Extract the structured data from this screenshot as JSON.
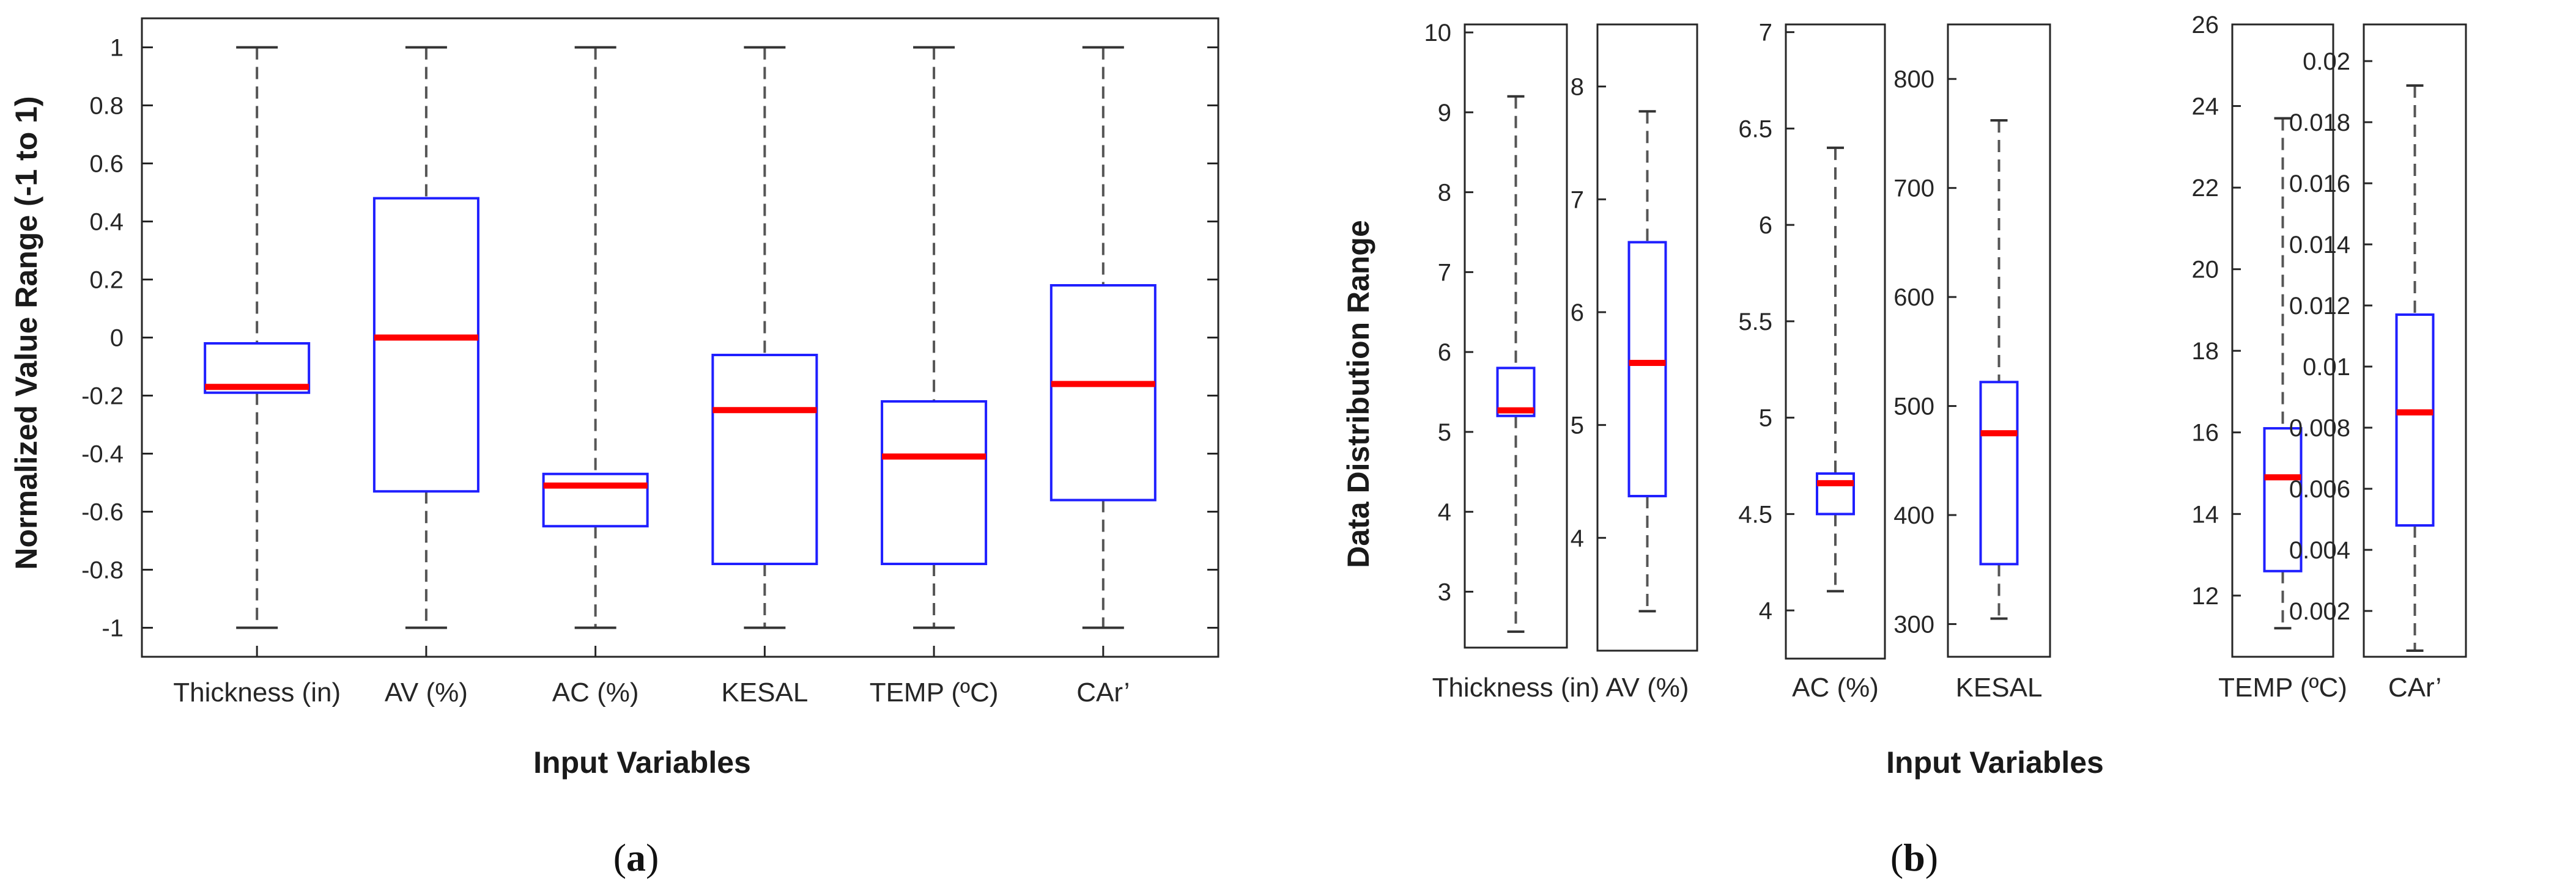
{
  "colors": {
    "box": "#1f1fff",
    "median": "#ff0000",
    "whisker": "#555555",
    "axis": "#262626"
  },
  "chart_data": [
    {
      "type": "box",
      "panel": "(a)",
      "panel_letter": "a",
      "xlabel": "Input Variables",
      "ylabel": "Normalized Value Range (-1 to 1)",
      "ylim": [
        -1.1,
        1.1
      ],
      "yticks": [
        1,
        0.8,
        0.6,
        0.4,
        0.2,
        0,
        -0.2,
        -0.4,
        -0.6,
        -0.8,
        -1
      ],
      "ytick_labels": [
        "1",
        "0.8",
        "0.6",
        "0.4",
        "0.2",
        "0",
        "-0.2",
        "-0.4",
        "-0.6",
        "-0.8",
        "-1"
      ],
      "categories": [
        "Thickness (in)",
        "AV (%)",
        "AC (%)",
        "KESAL",
        "TEMP (ºC)",
        "CAr’"
      ],
      "boxes": [
        {
          "min": -1,
          "q1": -0.19,
          "median": -0.17,
          "q3": -0.02,
          "max": 1
        },
        {
          "min": -1,
          "q1": -0.53,
          "median": 0.0,
          "q3": 0.48,
          "max": 1
        },
        {
          "min": -1,
          "q1": -0.65,
          "median": -0.51,
          "q3": -0.47,
          "max": 1
        },
        {
          "min": -1,
          "q1": -0.78,
          "median": -0.25,
          "q3": -0.06,
          "max": 1
        },
        {
          "min": -1,
          "q1": -0.78,
          "median": -0.41,
          "q3": -0.22,
          "max": 1
        },
        {
          "min": -1,
          "q1": -0.56,
          "median": -0.16,
          "q3": 0.18,
          "max": 1
        }
      ]
    },
    {
      "type": "box-multi-axis",
      "panel": "(b)",
      "panel_letter": "b",
      "xlabel": "Input Variables",
      "ylabel": "Data Distribution Range",
      "subplots": [
        {
          "category": "Thickness (in)",
          "ylim": [
            2.3,
            10.1
          ],
          "yticks": [
            3,
            4,
            5,
            6,
            7,
            8,
            9,
            10
          ],
          "ytick_labels": [
            "3",
            "4",
            "5",
            "6",
            "7",
            "8",
            "9",
            "10"
          ],
          "box": {
            "min": 2.5,
            "q1": 5.2,
            "median": 5.27,
            "q3": 5.8,
            "max": 9.2
          }
        },
        {
          "category": "AV (%)",
          "ylim": [
            3.0,
            8.55
          ],
          "yticks": [
            4,
            5,
            6,
            7,
            8
          ],
          "ytick_labels": [
            "4",
            "5",
            "6",
            "7",
            "8"
          ],
          "box": {
            "min": 3.35,
            "q1": 4.37,
            "median": 5.55,
            "q3": 6.62,
            "max": 7.78
          }
        },
        {
          "category": "AC (%)",
          "ylim": [
            3.75,
            7.04
          ],
          "yticks": [
            4,
            4.5,
            5,
            5.5,
            6,
            6.5,
            7
          ],
          "ytick_labels": [
            "4",
            "4.5",
            "5",
            "5.5",
            "6",
            "6.5",
            "7"
          ],
          "box": {
            "min": 4.1,
            "q1": 4.5,
            "median": 4.66,
            "q3": 4.71,
            "max": 6.4
          }
        },
        {
          "category": "KESAL",
          "ylim": [
            270,
            850
          ],
          "yticks": [
            300,
            400,
            500,
            600,
            700,
            800
          ],
          "ytick_labels": [
            "300",
            "400",
            "500",
            "600",
            "700",
            "800"
          ],
          "box": {
            "min": 305,
            "q1": 355,
            "median": 475,
            "q3": 522,
            "max": 762
          }
        },
        {
          "category": "TEMP (ºC)",
          "ylim": [
            10.5,
            26.0
          ],
          "yticks": [
            12,
            14,
            16,
            18,
            20,
            22,
            24,
            26
          ],
          "ytick_labels": [
            "12",
            "14",
            "16",
            "18",
            "20",
            "22",
            "24",
            "26"
          ],
          "box": {
            "min": 11.2,
            "q1": 12.6,
            "median": 14.9,
            "q3": 16.1,
            "max": 23.7
          }
        },
        {
          "category": "CAr’",
          "ylim": [
            0.0005,
            0.0212
          ],
          "yticks": [
            0.002,
            0.004,
            0.006,
            0.008,
            0.01,
            0.012,
            0.014,
            0.016,
            0.018,
            0.02
          ],
          "ytick_labels": [
            "0.002",
            "0.004",
            "0.006",
            "0.008",
            "0.01",
            "0.012",
            "0.014",
            "0.016",
            "0.018",
            "0.02"
          ],
          "box": {
            "min": 0.0007,
            "q1": 0.0048,
            "median": 0.0085,
            "q3": 0.0117,
            "max": 0.0192
          }
        }
      ]
    }
  ]
}
